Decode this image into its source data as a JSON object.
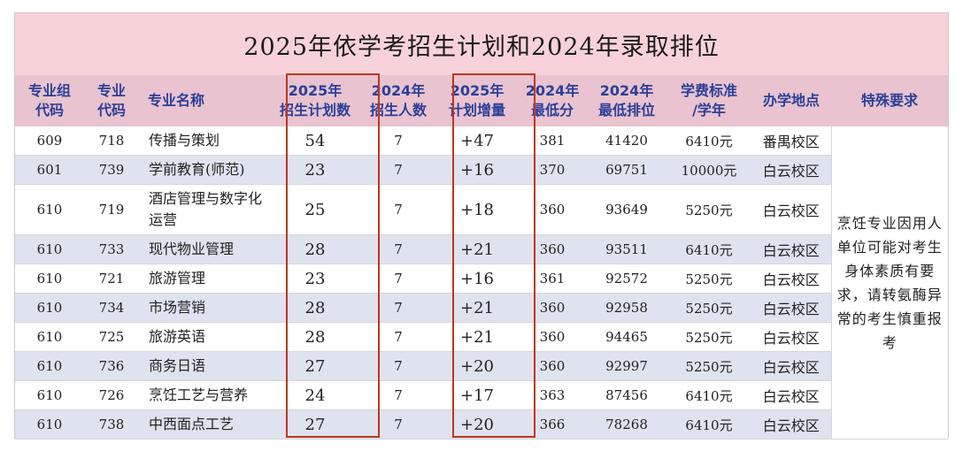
{
  "title": "2025年依学考招生计划和2024年录取排位",
  "headers": [
    [
      "专业组",
      "代码"
    ],
    [
      "专业",
      "代码"
    ],
    [
      "专业名称"
    ],
    [
      "2025年",
      "招生计划数"
    ],
    [
      "2024年",
      "招生人数"
    ],
    [
      "2025年",
      "计划增量"
    ],
    [
      "2024年",
      "最低分"
    ],
    [
      "2024年",
      "最低排位"
    ],
    [
      "学费标准",
      "/学年"
    ],
    [
      "办学地点"
    ],
    [
      "特殊要求"
    ]
  ],
  "rows": [
    {
      "group": "609",
      "code": "718",
      "name": "传播与策划",
      "plan2025": "54",
      "enroll2024": "7",
      "increase": "+47",
      "min_score": "381",
      "min_rank": "41420",
      "tuition": "6410元",
      "campus": "番禺校区"
    },
    {
      "group": "601",
      "code": "739",
      "name": "学前教育(师范)",
      "plan2025": "23",
      "enroll2024": "7",
      "increase": "+16",
      "min_score": "370",
      "min_rank": "69751",
      "tuition": "10000元",
      "campus": "白云校区"
    },
    {
      "group": "610",
      "code": "719",
      "name": "酒店管理与数字化运营",
      "plan2025": "25",
      "enroll2024": "7",
      "increase": "+18",
      "min_score": "360",
      "min_rank": "93649",
      "tuition": "5250元",
      "campus": "白云校区"
    },
    {
      "group": "610",
      "code": "733",
      "name": "现代物业管理",
      "plan2025": "28",
      "enroll2024": "7",
      "increase": "+21",
      "min_score": "360",
      "min_rank": "93511",
      "tuition": "6410元",
      "campus": "白云校区"
    },
    {
      "group": "610",
      "code": "721",
      "name": "旅游管理",
      "plan2025": "23",
      "enroll2024": "7",
      "increase": "+16",
      "min_score": "361",
      "min_rank": "92572",
      "tuition": "5250元",
      "campus": "白云校区"
    },
    {
      "group": "610",
      "code": "734",
      "name": "市场营销",
      "plan2025": "28",
      "enroll2024": "7",
      "increase": "+21",
      "min_score": "360",
      "min_rank": "92958",
      "tuition": "5250元",
      "campus": "白云校区"
    },
    {
      "group": "610",
      "code": "725",
      "name": "旅游英语",
      "plan2025": "28",
      "enroll2024": "7",
      "increase": "+21",
      "min_score": "360",
      "min_rank": "94465",
      "tuition": "5250元",
      "campus": "白云校区"
    },
    {
      "group": "610",
      "code": "736",
      "name": "商务日语",
      "plan2025": "27",
      "enroll2024": "7",
      "increase": "+20",
      "min_score": "360",
      "min_rank": "92997",
      "tuition": "5250元",
      "campus": "白云校区"
    },
    {
      "group": "610",
      "code": "726",
      "name": "烹饪工艺与营养",
      "plan2025": "24",
      "enroll2024": "7",
      "increase": "+17",
      "min_score": "363",
      "min_rank": "87456",
      "tuition": "6410元",
      "campus": "白云校区"
    },
    {
      "group": "610",
      "code": "738",
      "name": "中西面点工艺",
      "plan2025": "27",
      "enroll2024": "7",
      "increase": "+20",
      "min_score": "366",
      "min_rank": "78268",
      "tuition": "6410元",
      "campus": "白云校区"
    }
  ],
  "special_requirement": "烹饪专业因用人单位可能对考生身体素质有要求，请转氨酶异常的考生慎重报考"
}
